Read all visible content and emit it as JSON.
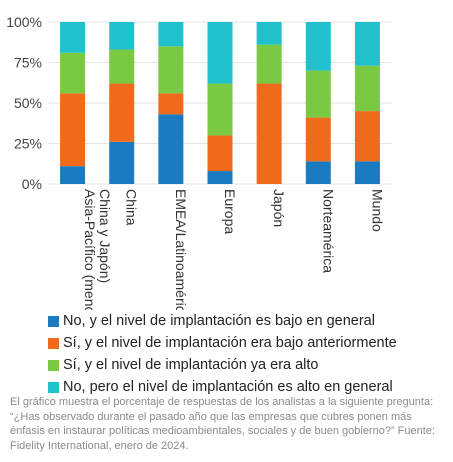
{
  "chart_data": {
    "type": "bar",
    "stacked": true,
    "categories": [
      "Asia-Pacífico (menos China y Japón)",
      "China",
      "EMEA/Latinoamérica",
      "Europa",
      "Japón",
      "Norteamérica",
      "Mundo"
    ],
    "yticks": [
      "100%",
      "75%",
      "50%",
      "25%",
      "0%"
    ],
    "ylim": [
      0,
      100
    ],
    "series": [
      {
        "name": "No, y el nivel de implantación es bajo en general",
        "color": "#1a7bc0",
        "values": [
          11,
          26,
          43,
          8,
          0,
          14,
          14
        ]
      },
      {
        "name": "Sí, y el nivel de implantación era bajo anteriormente",
        "color": "#ef6a1a",
        "values": [
          45,
          36,
          13,
          22,
          62,
          27,
          31
        ]
      },
      {
        "name": "Sí, y el nivel de implantación ya era alto",
        "color": "#7ac943",
        "values": [
          25,
          21,
          29,
          32,
          24,
          29,
          28
        ]
      },
      {
        "name": "No, pero el nivel de implantación es alto en general",
        "color": "#20c0cc",
        "values": [
          19,
          17,
          15,
          38,
          14,
          30,
          27
        ]
      }
    ],
    "grid": true,
    "legend": "bottom"
  },
  "caption": "El gráfico muestra el porcentaje de respuestas de los analistas a la siguiente pregunta: “¿Has observado durante el pasado año que las empresas que cubres ponen más énfasis en instaurar políticas medioambientales, sociales y de buen gobierno?” Fuente: Fidelity International, enero de 2024."
}
